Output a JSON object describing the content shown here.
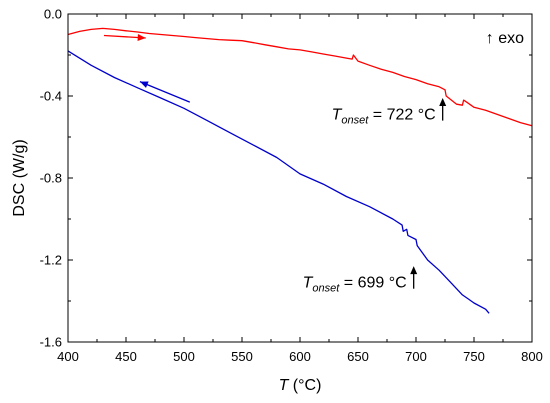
{
  "chart_data": {
    "type": "line",
    "xlabel": {
      "symbol": "T",
      "unit": "(°C)"
    },
    "ylabel": "DSC (W/g)",
    "xlim": [
      400,
      800
    ],
    "ylim": [
      -1.6,
      0.0
    ],
    "xticks": [
      400,
      450,
      500,
      550,
      600,
      650,
      700,
      750,
      800
    ],
    "yticks": [
      0.0,
      -0.4,
      -0.8,
      -1.2,
      -1.6
    ],
    "ytick_labels": [
      "0.0",
      "-0.4",
      "-0.8",
      "-1.2",
      "-1.6"
    ],
    "legend_note": "↑ exo",
    "series": [
      {
        "color": "#ff0000",
        "x": [
          400,
          410,
          420,
          430,
          440,
          450,
          460,
          470,
          480,
          490,
          500,
          510,
          520,
          530,
          540,
          550,
          560,
          570,
          580,
          590,
          600,
          610,
          620,
          630,
          640,
          645,
          646,
          650,
          660,
          670,
          680,
          690,
          700,
          710,
          720,
          725,
          726,
          735,
          740,
          741,
          745,
          750,
          760,
          770,
          780,
          790,
          800
        ],
        "y": [
          -0.1,
          -0.085,
          -0.075,
          -0.07,
          -0.075,
          -0.082,
          -0.088,
          -0.095,
          -0.1,
          -0.105,
          -0.11,
          -0.115,
          -0.12,
          -0.125,
          -0.128,
          -0.13,
          -0.14,
          -0.15,
          -0.16,
          -0.17,
          -0.175,
          -0.185,
          -0.195,
          -0.205,
          -0.215,
          -0.22,
          -0.2,
          -0.23,
          -0.25,
          -0.27,
          -0.285,
          -0.305,
          -0.32,
          -0.34,
          -0.355,
          -0.37,
          -0.4,
          -0.44,
          -0.445,
          -0.42,
          -0.435,
          -0.455,
          -0.47,
          -0.49,
          -0.51,
          -0.53,
          -0.545
        ]
      },
      {
        "color": "#0000cc",
        "x": [
          400,
          420,
          440,
          460,
          480,
          500,
          520,
          540,
          560,
          580,
          600,
          620,
          640,
          660,
          680,
          688,
          689,
          692,
          693,
          700,
          701,
          710,
          720,
          730,
          740,
          745,
          750,
          760,
          763
        ],
        "y": [
          -0.18,
          -0.25,
          -0.31,
          -0.36,
          -0.41,
          -0.46,
          -0.52,
          -0.58,
          -0.64,
          -0.7,
          -0.78,
          -0.83,
          -0.89,
          -0.94,
          -1.0,
          -1.03,
          -1.06,
          -1.05,
          -1.08,
          -1.1,
          -1.13,
          -1.2,
          -1.25,
          -1.31,
          -1.37,
          -1.39,
          -1.41,
          -1.44,
          -1.46
        ]
      }
    ],
    "arrows": [
      {
        "color": "#ff0000",
        "from": [
          431,
          -0.105
        ],
        "to": [
          467,
          -0.117
        ]
      },
      {
        "color": "#0000cc",
        "from": [
          505,
          -0.43
        ],
        "to": [
          462,
          -0.33
        ]
      }
    ],
    "onset_markers": [
      {
        "label_symbol": "T",
        "label_sub": "onset",
        "label_value": "= 722 °C",
        "x": 723,
        "y_from": -0.52,
        "y_to": -0.41
      },
      {
        "label_symbol": "T",
        "label_sub": "onset",
        "label_value": "= 699 °C",
        "x": 698,
        "y_from": -1.34,
        "y_to": -1.23
      }
    ]
  }
}
